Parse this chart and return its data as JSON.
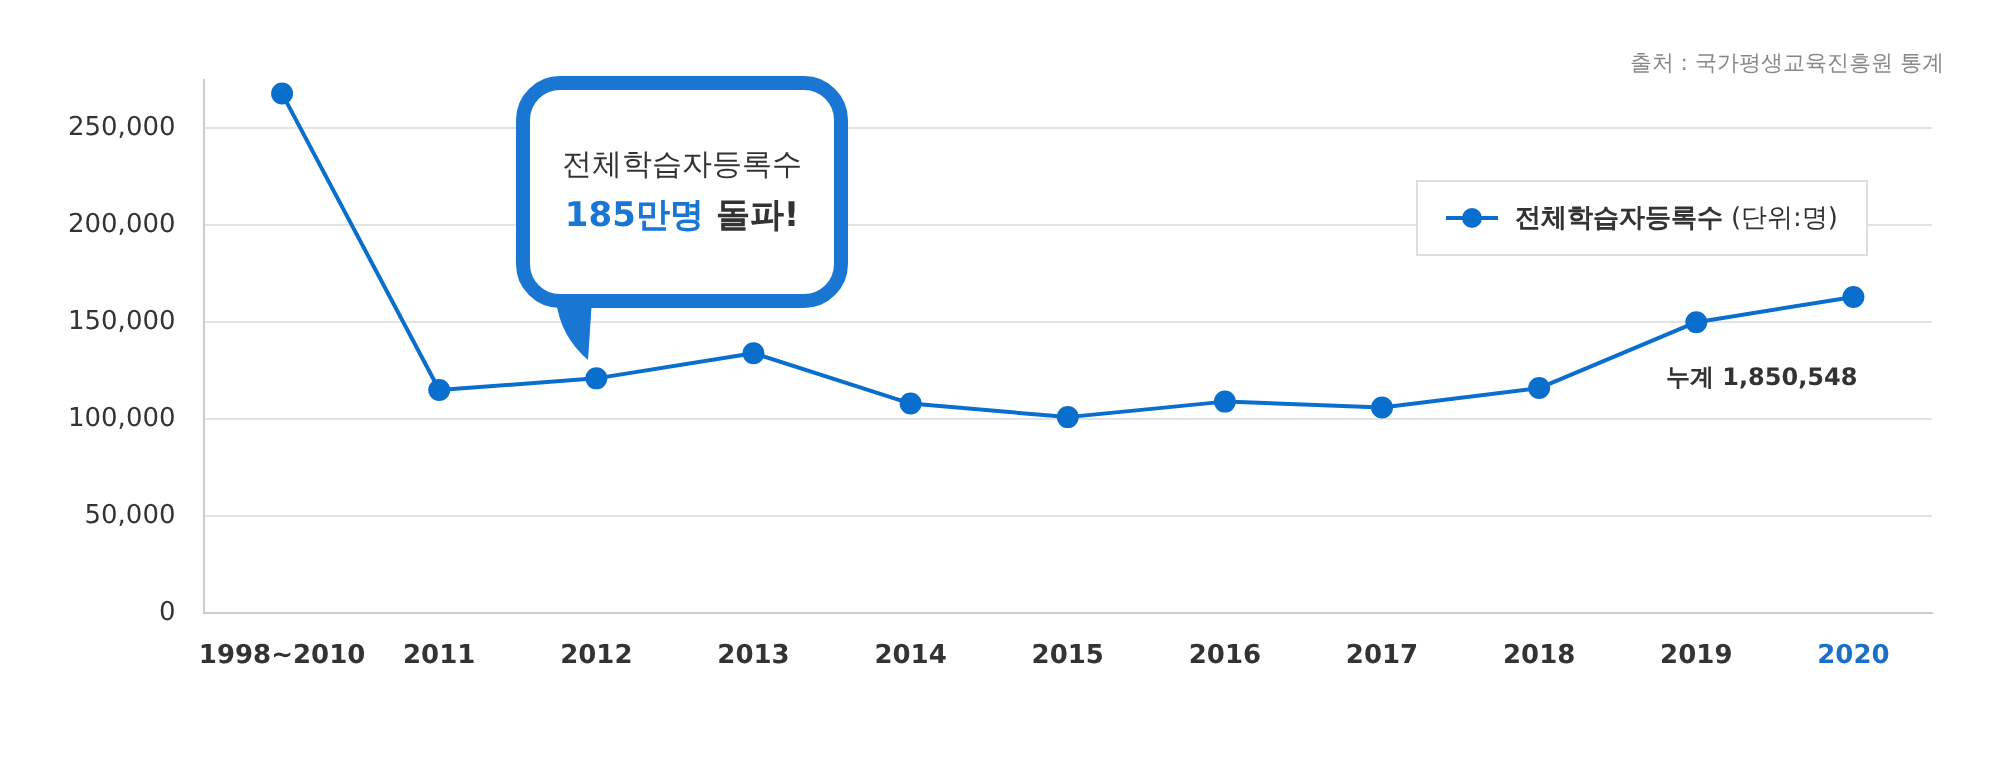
{
  "chart_data": {
    "type": "line",
    "categories": [
      "1998~2010",
      "2011",
      "2012",
      "2013",
      "2014",
      "2015",
      "2016",
      "2017",
      "2018",
      "2019",
      "2020"
    ],
    "series": [
      {
        "name": "전체학습자등록수 (단위:명)",
        "color": "#0a6fcc",
        "values": [
          268000,
          115000,
          121000,
          134000,
          108000,
          101000,
          109000,
          106000,
          116000,
          150000,
          163000
        ]
      }
    ],
    "ylim": [
      0,
      275000
    ],
    "yticks": [
      {
        "value": 0,
        "label": "0"
      },
      {
        "value": 50000,
        "label": "50,000"
      },
      {
        "value": 100000,
        "label": "100,000"
      },
      {
        "value": 150000,
        "label": "150,000"
      },
      {
        "value": 200000,
        "label": "200,000"
      },
      {
        "value": 250000,
        "label": "250,000"
      }
    ],
    "grid": "y",
    "legend": "top right",
    "marker": "circle",
    "line_style": "solid",
    "annotations": [
      "출처 : 국가평생교육진흥원 통계",
      "전체학습자등록수\n185만명 돌파!",
      {
        "text": "누계 1,850,548",
        "x": "2020",
        "y": 163000
      }
    ]
  }
}
